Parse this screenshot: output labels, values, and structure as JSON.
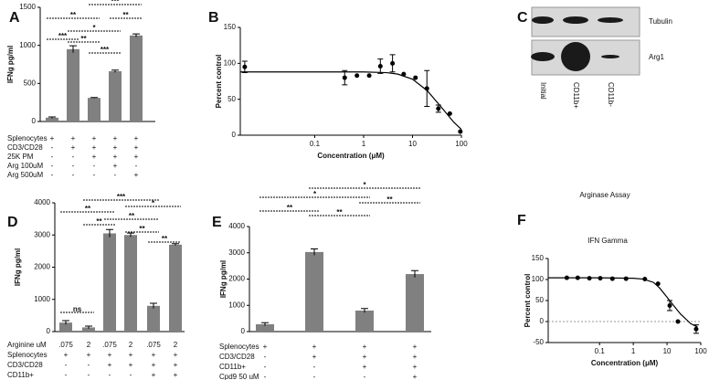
{
  "chart_data": [
    {
      "type": "bar",
      "panel": "A",
      "ylabel": "IFNg pg/ml",
      "color": "#808080",
      "values": [
        50,
        950,
        310,
        660,
        1130
      ],
      "errors": [
        10,
        45,
        5,
        15,
        20
      ],
      "ylim": [
        0,
        1500
      ],
      "yticks": [
        0,
        500,
        1000,
        1500
      ],
      "conditions": [
        {
          "label": "Splenocytes",
          "marks": [
            "+",
            "+",
            "+",
            "+",
            "+"
          ]
        },
        {
          "label": "CD3/CD28",
          "marks": [
            "-",
            "+",
            "+",
            "+",
            "+"
          ]
        },
        {
          "label": "25K PM",
          "marks": [
            "-",
            "-",
            "+",
            "+",
            "+"
          ]
        },
        {
          "label": "Arg 100uM",
          "marks": [
            "-",
            "-",
            "-",
            "+",
            "-"
          ]
        },
        {
          "label": "Arg 500uM",
          "marks": [
            "-",
            "-",
            "-",
            "-",
            "+"
          ]
        }
      ],
      "annotations": [
        "**",
        "***",
        "**",
        "***",
        "*",
        "**",
        "***"
      ]
    },
    {
      "type": "scatter",
      "panel": "B",
      "ylabel": "Percent control",
      "xlabel": "Concentration (μM)",
      "color": "#000000",
      "x": [
        0.0037,
        0.41,
        0.73,
        1.3,
        2.2,
        3.9,
        6.6,
        11.5,
        19.7,
        33.8,
        58,
        95
      ],
      "values": [
        95,
        80,
        83,
        83,
        96,
        100,
        85,
        80,
        65,
        37,
        30,
        5
      ],
      "errors": [
        8,
        10,
        null,
        null,
        10,
        12,
        null,
        null,
        25,
        5,
        null,
        null
      ],
      "fit": {
        "x": [
          0.003,
          0.1,
          1,
          3,
          5,
          10,
          20,
          40,
          70,
          100
        ],
        "values": [
          88,
          88,
          88,
          87,
          85,
          78,
          62,
          38,
          18,
          8
        ]
      },
      "log_x": true,
      "xlim": [
        0.003,
        100
      ],
      "xticks": [
        0.1,
        1,
        10,
        100
      ],
      "ylim": [
        0,
        150
      ],
      "yticks": [
        0,
        50,
        100,
        150
      ]
    },
    {
      "type": "blot",
      "panel": "C",
      "row_labels": [
        "Tubulin",
        "Arg1"
      ],
      "lane_labels": [
        "Initial",
        "CD11b+",
        "CD11b-"
      ]
    },
    {
      "type": "bar",
      "panel": "D",
      "ylabel": "IFNg pg/ml",
      "color": "#808080",
      "values": [
        280,
        130,
        3050,
        3000,
        800,
        2700
      ],
      "errors": [
        60,
        40,
        120,
        60,
        80,
        30
      ],
      "ylim": [
        0,
        4000
      ],
      "yticks": [
        0,
        1000,
        2000,
        3000,
        4000
      ],
      "conditions": [
        {
          "label": "Arginine uM",
          "marks": [
            ".075",
            "2",
            ".075",
            "2",
            ".075",
            "2"
          ]
        },
        {
          "label": "Splenocytes",
          "marks": [
            "+",
            "+",
            "+",
            "+",
            "+",
            "+"
          ]
        },
        {
          "label": "CD3/CD28",
          "marks": [
            "-",
            "-",
            "+",
            "+",
            "+",
            "+"
          ]
        },
        {
          "label": "CD11b+",
          "marks": [
            "-",
            "-",
            "-",
            "-",
            "+",
            "+"
          ]
        }
      ],
      "annotations": [
        "ns",
        "**",
        "**",
        "***",
        "**",
        "*",
        "**",
        "**"
      ]
    },
    {
      "type": "bar",
      "panel": "E",
      "ylabel": "IFNg pg/ml",
      "color": "#808080",
      "values": [
        280,
        3030,
        800,
        2190
      ],
      "errors": [
        60,
        120,
        80,
        130
      ],
      "ylim": [
        0,
        4000
      ],
      "yticks": [
        0,
        1000,
        2000,
        3000,
        4000
      ],
      "conditions": [
        {
          "label": "Splenocytes",
          "marks": [
            "+",
            "+",
            "+",
            "+"
          ]
        },
        {
          "label": "CD3/CD28",
          "marks": [
            "-",
            "+",
            "+",
            "+"
          ]
        },
        {
          "label": "CD11b+",
          "marks": [
            "-",
            "-",
            "+",
            "+"
          ]
        },
        {
          "label": "Cpd9 50 uM",
          "marks": [
            "-",
            "-",
            "-",
            "+"
          ]
        }
      ],
      "annotations": [
        "*",
        "**",
        "*",
        "**",
        "**"
      ]
    },
    {
      "type": "scatter",
      "panel": "F",
      "title": "Arginase Assay",
      "subtitle": "IFN Gamma",
      "ylabel": "Percent control",
      "xlabel": "Concentration (μM)",
      "color": "#000000",
      "x": [
        0.0107,
        0.0225,
        0.05,
        0.105,
        0.24,
        0.61,
        2.2,
        5.4,
        12,
        21,
        73
      ],
      "values": [
        104,
        104,
        103,
        103,
        102,
        102,
        101,
        90,
        38,
        0,
        -18
      ],
      "errors": [
        null,
        null,
        null,
        null,
        null,
        null,
        null,
        null,
        12,
        null,
        10
      ],
      "fit": {
        "x": [
          0.003,
          0.1,
          1,
          2,
          4,
          6,
          10,
          15,
          25,
          50,
          80
        ],
        "values": [
          104,
          104,
          103,
          101,
          93,
          80,
          58,
          40,
          18,
          -5,
          -13
        ]
      },
      "log_x": true,
      "xlim": [
        0.003,
        100
      ],
      "xticks": [
        0.1,
        1,
        10,
        100
      ],
      "ylim": [
        -50,
        150
      ],
      "yticks": [
        -50,
        0,
        50,
        100,
        150
      ],
      "zero_line": true
    }
  ]
}
